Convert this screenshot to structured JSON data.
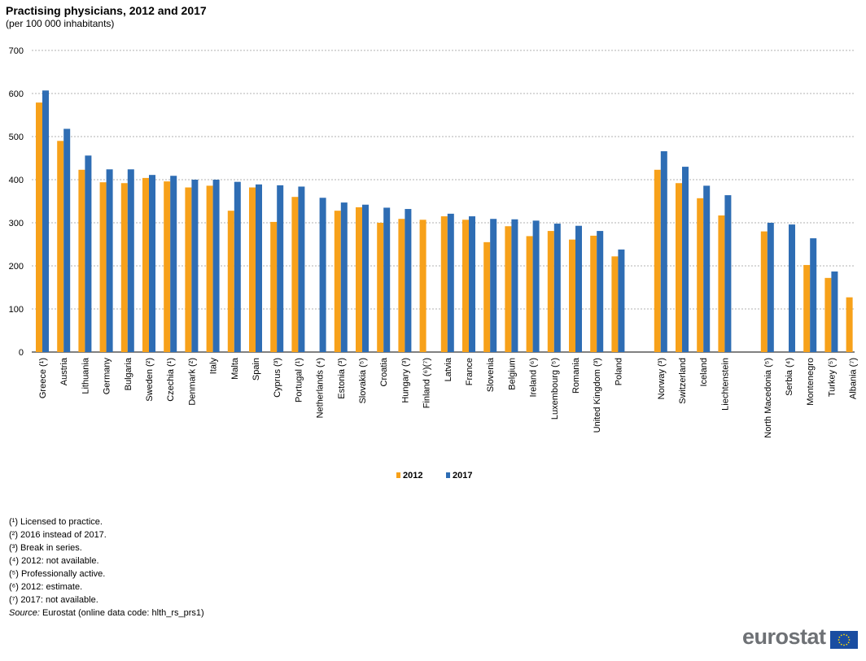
{
  "title": "Practising physicians, 2012 and 2017",
  "subtitle": "(per 100 000 inhabitants)",
  "colors": {
    "s2012": "#f7a11a",
    "s2017": "#2e6db4",
    "grid": "#b0b0b0",
    "axis": "#000000"
  },
  "chart_data": {
    "type": "bar",
    "title": "Practising physicians, 2012 and 2017",
    "subtitle": "(per 100 000 inhabitants)",
    "xlabel": "",
    "ylabel": "",
    "ylim": [
      0,
      700
    ],
    "yticks": [
      "0",
      "100",
      "200",
      "300",
      "400",
      "500",
      "600",
      "700"
    ],
    "grid": true,
    "legend_position": "bottom-center",
    "groups": [
      [
        "Greece (¹)",
        "Austria",
        "Lithuania",
        "Germany",
        "Bulgaria",
        "Sweden (²)",
        "Czechia (¹)",
        "Denmark (²)",
        "Italy",
        "Malta",
        "Spain",
        "Cyprus (³)",
        "Portugal (¹)",
        "Netherlands (⁴)",
        "Estonia (³)",
        "Slovakia (⁵)",
        "Croatia",
        "Hungary (³)",
        "Finland (⁶)(⁷)",
        "Latvia",
        "France",
        "Slovenia",
        "Belgium",
        "Ireland (⁶)",
        "Luxembourg (⁵)",
        "Romania",
        "United Kingdom (³)",
        "Poland"
      ],
      [
        "Norway (³)",
        "Switzerland",
        "Iceland",
        "Liechtenstein"
      ],
      [
        "North Macedonia (⁵)",
        "Serbia (⁴)",
        "Montenegro",
        "Turkey (⁵)",
        "Albania (⁷)"
      ]
    ],
    "categories": [
      "Greece (¹)",
      "Austria",
      "Lithuania",
      "Germany",
      "Bulgaria",
      "Sweden (²)",
      "Czechia (¹)",
      "Denmark (²)",
      "Italy",
      "Malta",
      "Spain",
      "Cyprus (³)",
      "Portugal (¹)",
      "Netherlands (⁴)",
      "Estonia (³)",
      "Slovakia (⁵)",
      "Croatia",
      "Hungary (³)",
      "Finland (⁶)(⁷)",
      "Latvia",
      "France",
      "Slovenia",
      "Belgium",
      "Ireland (⁶)",
      "Luxembourg (⁵)",
      "Romania",
      "United Kingdom (³)",
      "Poland",
      "Norway (³)",
      "Switzerland",
      "Iceland",
      "Liechtenstein",
      "North Macedonia (⁵)",
      "Serbia (⁴)",
      "Montenegro",
      "Turkey (⁵)",
      "Albania (⁷)"
    ],
    "series": [
      {
        "name": "2012",
        "values": [
          579,
          490,
          423,
          394,
          392,
          404,
          396,
          382,
          386,
          328,
          382,
          302,
          360,
          null,
          328,
          336,
          300,
          309,
          307,
          315,
          307,
          255,
          292,
          269,
          281,
          261,
          270,
          222,
          423,
          392,
          357,
          317,
          280,
          null,
          202,
          172,
          127
        ]
      },
      {
        "name": "2017",
        "values": [
          607,
          518,
          456,
          424,
          424,
          411,
          409,
          400,
          400,
          395,
          389,
          387,
          384,
          358,
          347,
          342,
          335,
          332,
          null,
          321,
          315,
          309,
          308,
          305,
          298,
          293,
          281,
          238,
          466,
          430,
          386,
          364,
          300,
          296,
          264,
          187,
          null
        ]
      }
    ]
  },
  "notes": [
    "(¹) Licensed to practice.",
    "(²) 2016 instead of 2017.",
    "(³) Break in series.",
    "(⁴) 2012: not available.",
    "(⁵) Professionally active.",
    "(⁶) 2012: estimate.",
    "(⁷) 2017: not available."
  ],
  "source": {
    "label": "Source:",
    "text": " Eurostat (online data code: hlth_rs_prs1)"
  },
  "logo": {
    "text": "eurostat",
    "icon": "eu-flag-icon"
  }
}
